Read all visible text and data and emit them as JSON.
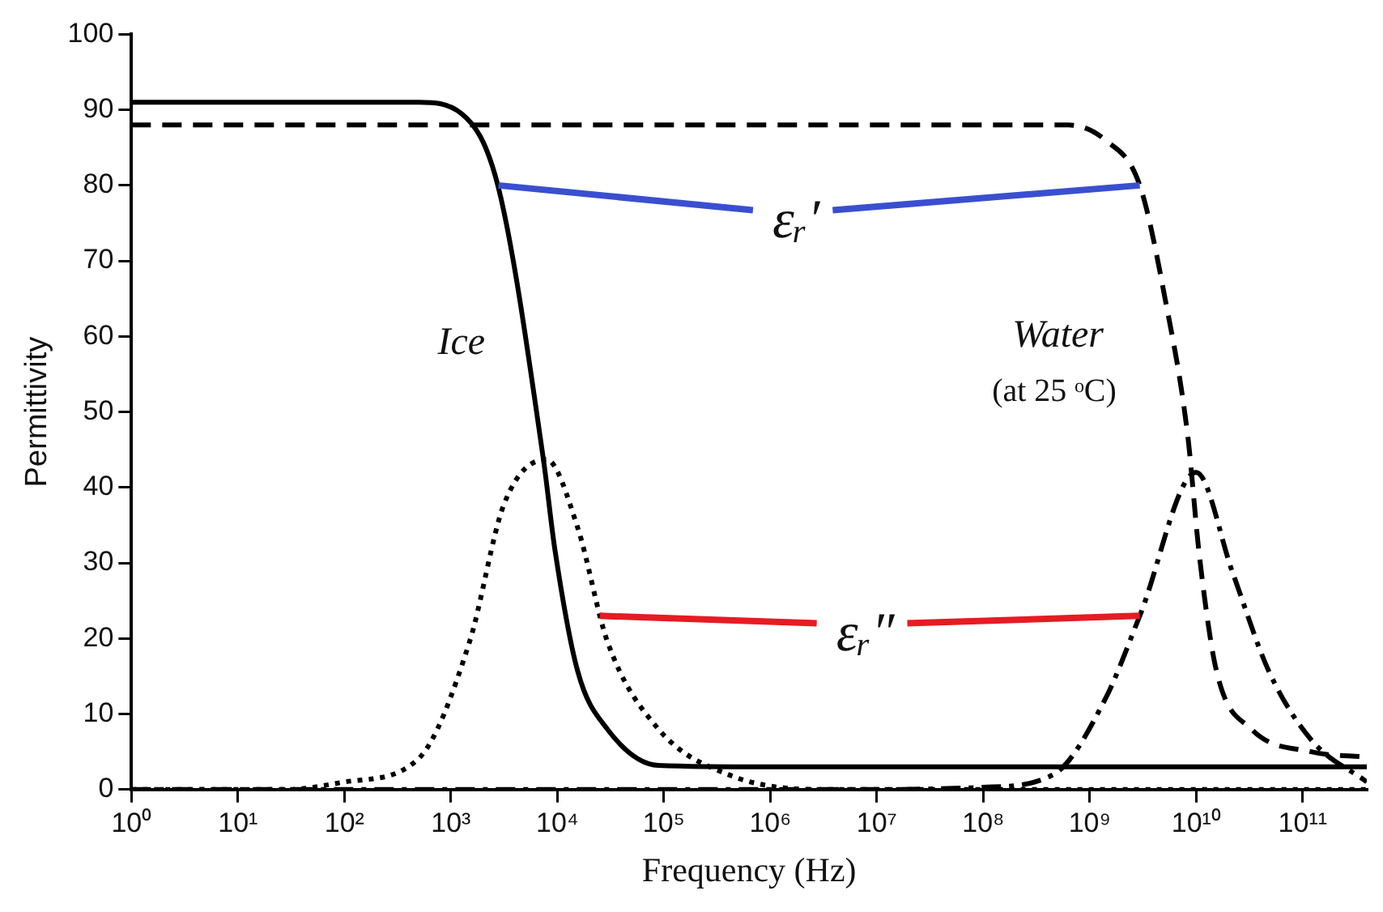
{
  "chart_data": {
    "type": "line",
    "xlabel": "Frequency (Hz)",
    "ylabel": "Permittivity",
    "log": "x",
    "grid": false,
    "legend": false,
    "marker": "none",
    "xlim": [
      1,
      400000000000
    ],
    "ylim": [
      0,
      100
    ],
    "xticks": [
      {
        "value": 1,
        "label": "10⁰"
      },
      {
        "value": 10,
        "label": "10¹"
      },
      {
        "value": 100,
        "label": "10²"
      },
      {
        "value": 1000,
        "label": "10³"
      },
      {
        "value": 10000,
        "label": "10⁴"
      },
      {
        "value": 100000,
        "label": "10⁵"
      },
      {
        "value": 1000000,
        "label": "10⁶"
      },
      {
        "value": 10000000,
        "label": "10⁷"
      },
      {
        "value": 100000000,
        "label": "10⁸"
      },
      {
        "value": 1000000000,
        "label": "10⁹"
      },
      {
        "value": 10000000000,
        "label": "10¹⁰"
      },
      {
        "value": 100000000000,
        "label": "10¹¹"
      }
    ],
    "yticks": [
      0,
      10,
      20,
      30,
      40,
      50,
      60,
      70,
      80,
      90,
      100
    ],
    "series": [
      {
        "color": "#000000",
        "line_style": "solid",
        "x": [
          1,
          100,
          500,
          1260,
          2818,
          7400,
          9500,
          15500,
          29500,
          89000,
          1000000,
          100000000,
          400000000000
        ],
        "values": [
          91,
          91,
          91,
          89.5,
          79.5,
          43.7,
          31.7,
          15.7,
          8,
          3.2,
          3,
          3,
          3
        ]
      },
      {
        "color": "#000000",
        "line_style": "dashed",
        "x": [
          1,
          1000000,
          630000000,
          1400000000,
          2950000000,
          5100000000,
          8300000000,
          10700000000,
          15500000000,
          33000000000,
          120000000000,
          400000000000
        ],
        "values": [
          88,
          88,
          88,
          86,
          80,
          65,
          47,
          31,
          15.7,
          8,
          5,
          4.3
        ]
      },
      {
        "color": "#000000",
        "line_style": "dotted",
        "x": [
          1,
          30,
          100,
          490,
          1500,
          3160,
          7900,
          15500,
          29500,
          89000,
          400000,
          3000000,
          100000000,
          400000000000
        ],
        "values": [
          0,
          0,
          1,
          4,
          19.6,
          37.8,
          43.7,
          34.7,
          19.6,
          8,
          2,
          0,
          0,
          0
        ]
      },
      {
        "color": "#000000",
        "line_style": "dashdot",
        "x": [
          1,
          10000000,
          100000000,
          457000000,
          1400000000,
          2950000000,
          10000000000,
          22000000000,
          48000000000,
          120000000000,
          400000000000
        ],
        "values": [
          0,
          0,
          0.3,
          2,
          12,
          23,
          42,
          28.7,
          15.7,
          6.6,
          1
        ]
      }
    ],
    "annotations": [
      "Ice",
      "Water",
      "(at 25 ᵒC)",
      {
        "text": "εᵣ′",
        "x": 2800,
        "y": 80
      },
      {
        "text": "εᵣ″",
        "x": 25000,
        "y": 23
      }
    ]
  }
}
